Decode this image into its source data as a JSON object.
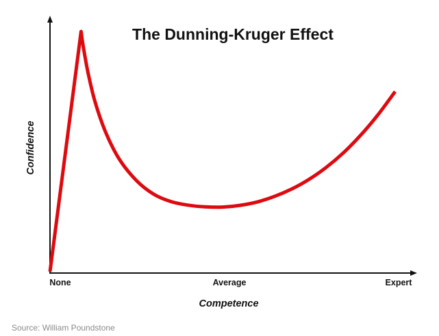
{
  "chart_data": {
    "type": "line",
    "title": "The Dunning-Kruger Effect",
    "xlabel": "Competence",
    "ylabel": "Confidence",
    "x_tick_labels": [
      {
        "x": 0,
        "label": "None"
      },
      {
        "x": 50,
        "label": "Average"
      },
      {
        "x": 100,
        "label": "Expert"
      }
    ],
    "xlim": [
      0,
      100
    ],
    "ylim": [
      0,
      100
    ],
    "grid": false,
    "legend": "none",
    "series": [
      {
        "color": "#dd0a0f",
        "points": [
          [
            0,
            0
          ],
          [
            9,
            100
          ],
          [
            9.6,
            94
          ],
          [
            11,
            83
          ],
          [
            13,
            71
          ],
          [
            16,
            58.5
          ],
          [
            20,
            47
          ],
          [
            25,
            38
          ],
          [
            30,
            32.3
          ],
          [
            35,
            29.2
          ],
          [
            40,
            27.7
          ],
          [
            45,
            27
          ],
          [
            50,
            26.9
          ],
          [
            55,
            27.6
          ],
          [
            60,
            29
          ],
          [
            65,
            31.3
          ],
          [
            70,
            34.4
          ],
          [
            75,
            38.4
          ],
          [
            80,
            43.4
          ],
          [
            85,
            49.5
          ],
          [
            90,
            56.8
          ],
          [
            95,
            65.3
          ],
          [
            100,
            75
          ]
        ]
      }
    ],
    "source": "Source: William Poundstone",
    "colors": {
      "line": "#dd0a0f",
      "axis": "#111111",
      "source_text": "#8a8a8a"
    }
  }
}
